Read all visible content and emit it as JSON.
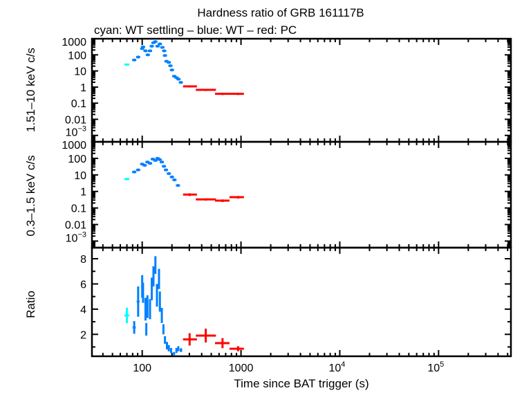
{
  "chart_data": {
    "title": "Hardness ratio of GRB 161117B",
    "subtitle": "cyan: WT settling – blue: WT – red: PC",
    "xlabel": "Time since BAT trigger (s)",
    "xscale": "log",
    "xlim": [
      31,
      540000
    ],
    "x_ticks": [
      {
        "v": 100,
        "label": "100"
      },
      {
        "v": 1000,
        "label": "1000"
      },
      {
        "v": 10000,
        "label": "10",
        "exp": "4"
      },
      {
        "v": 100000,
        "label": "10",
        "exp": "5"
      }
    ],
    "colors": {
      "wt_settling": "#00ffff",
      "wt": "#0080ff",
      "pc": "#ff0000"
    },
    "panels": [
      {
        "type": "scatter",
        "ylabel": "1.51–10 keV c/s",
        "yscale": "log",
        "ylim": [
          0.0004,
          1000
        ],
        "y_ticks": [
          {
            "v": 1000,
            "label": "1000"
          },
          {
            "v": 100,
            "label": "100"
          },
          {
            "v": 10,
            "label": "10"
          },
          {
            "v": 1,
            "label": "1"
          },
          {
            "v": 0.1,
            "label": "0.1"
          },
          {
            "v": 0.01,
            "label": "0.01"
          },
          {
            "v": 0.001,
            "label": "10",
            "exp": "−3"
          }
        ],
        "series": [
          {
            "mode": "wt_settling",
            "points": [
              [
                70,
                25,
                66,
                74,
                3
              ]
            ]
          },
          {
            "mode": "wt",
            "points": [
              [
                83,
                48
              ],
              [
                91,
                73
              ],
              [
                100,
                245
              ],
              [
                102,
                310
              ],
              [
                108,
                177
              ],
              [
                114,
                100
              ],
              [
                120,
                177
              ],
              [
                125,
                345
              ],
              [
                130,
                565
              ],
              [
                136,
                660
              ],
              [
                143,
                345
              ],
              [
                151,
                475
              ],
              [
                160,
                290
              ],
              [
                167,
                177
              ],
              [
                170,
                91
              ],
              [
                176,
                40
              ],
              [
                186,
                34
              ],
              [
                193,
                21
              ],
              [
                200,
                11.5
              ],
              [
                211,
                4.7
              ],
              [
                223,
                3.8
              ],
              [
                233,
                3.1
              ],
              [
                246,
                1.95
              ]
            ]
          },
          {
            "mode": "pc",
            "points": [
              [
                302,
                1.1,
                259,
                358,
                0.15
              ],
              [
                440,
                0.67,
                349,
                558,
                0.1
              ],
              [
                650,
                0.38,
                546,
                765,
                0.06
              ],
              [
                935,
                0.38,
                765,
                1070,
                0.06
              ]
            ]
          }
        ]
      },
      {
        "type": "scatter",
        "ylabel": "0.3–1.5 keV c/s",
        "yscale": "log",
        "ylim": [
          0.0004,
          1000
        ],
        "y_ticks": [
          {
            "v": 1000,
            "label": "1000"
          },
          {
            "v": 100,
            "label": "100"
          },
          {
            "v": 10,
            "label": "10"
          },
          {
            "v": 1,
            "label": "1"
          },
          {
            "v": 0.1,
            "label": "0.1"
          },
          {
            "v": 0.01,
            "label": "0.01"
          },
          {
            "v": 0.001,
            "label": "10",
            "exp": "−3"
          }
        ],
        "series": [
          {
            "mode": "wt_settling",
            "points": [
              [
                70,
                5.6,
                66,
                74,
                0.8
              ]
            ]
          },
          {
            "mode": "wt",
            "points": [
              [
                83,
                15
              ],
              [
                91,
                20
              ],
              [
                100,
                45
              ],
              [
                106,
                38
              ],
              [
                113,
                60
              ],
              [
                120,
                50
              ],
              [
                128,
                90
              ],
              [
                136,
                75
              ],
              [
                143,
                100
              ],
              [
                150,
                85
              ],
              [
                158,
                60
              ],
              [
                166,
                33
              ],
              [
                174,
                20
              ],
              [
                186,
                12
              ],
              [
                200,
                7.5
              ],
              [
                212,
                5.0
              ],
              [
                230,
                2.3
              ]
            ]
          },
          {
            "mode": "pc",
            "points": [
              [
                302,
                0.65,
                259,
                358,
                0.12
              ],
              [
                440,
                0.33,
                349,
                558,
                0.05
              ],
              [
                650,
                0.28,
                546,
                765,
                0.05
              ],
              [
                935,
                0.45,
                765,
                1070,
                0.08
              ]
            ]
          }
        ]
      },
      {
        "type": "scatter",
        "ylabel": "Ratio",
        "yscale": "linear",
        "ylim": [
          0.26,
          8.88
        ],
        "y_ticks": [
          {
            "v": 2,
            "label": "2"
          },
          {
            "v": 4,
            "label": "4"
          },
          {
            "v": 6,
            "label": "6"
          },
          {
            "v": 8,
            "label": "8"
          }
        ],
        "series": [
          {
            "mode": "wt_settling",
            "points": [
              [
                70,
                3.5,
                66,
                74,
                0.62
              ]
            ]
          },
          {
            "mode": "wt",
            "points": [
              [
                83,
                2.55,
                80,
                86,
                0.5
              ],
              [
                91,
                4.6,
                88,
                94,
                1.2
              ],
              [
                100,
                5.8,
                98,
                102,
                0.9
              ],
              [
                102,
                5.3,
                100,
                104,
                0.8
              ],
              [
                108,
                4.0,
                106,
                110,
                0.9
              ],
              [
                110,
                2.4,
                109,
                111,
                0.5
              ],
              [
                113,
                4.2,
                111,
                115,
                0.9
              ],
              [
                120,
                4.0,
                118,
                122,
                0.8
              ],
              [
                125,
                5.6,
                123,
                127,
                0.9
              ],
              [
                130,
                6.6,
                128,
                132,
                0.8
              ],
              [
                136,
                7.5,
                134,
                138,
                0.7
              ],
              [
                141,
                5.1,
                139,
                143,
                0.9
              ],
              [
                148,
                6.4,
                146,
                150,
                0.8
              ],
              [
                151,
                4.6,
                149,
                153,
                0.8
              ],
              [
                158,
                3.5,
                156,
                160,
                0.6
              ],
              [
                164,
                2.4,
                162,
                166,
                0.4
              ],
              [
                170,
                1.55,
                168,
                172,
                0.3
              ],
              [
                178,
                1.1,
                176,
                180,
                0.3
              ],
              [
                186,
                0.9,
                184,
                188,
                0.25
              ],
              [
                196,
                0.72,
                193,
                199,
                0.2
              ],
              [
                210,
                0.45,
                207,
                213,
                0.15
              ],
              [
                222,
                0.72,
                219,
                225,
                0.2
              ],
              [
                232,
                0.86,
                229,
                235,
                0.2
              ],
              [
                247,
                0.75,
                240,
                254,
                0.15
              ]
            ]
          },
          {
            "mode": "pc",
            "points": [
              [
                302,
                1.6,
                259,
                358,
                0.49
              ],
              [
                440,
                1.9,
                349,
                558,
                0.55
              ],
              [
                650,
                1.3,
                546,
                765,
                0.4
              ],
              [
                935,
                0.86,
                765,
                1070,
                0.2
              ]
            ]
          }
        ]
      }
    ]
  }
}
